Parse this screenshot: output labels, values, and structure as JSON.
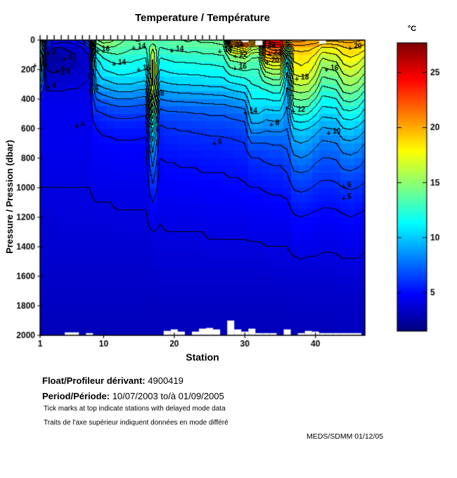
{
  "title": "Temperature / Température",
  "colorbar": {
    "unit": "°C",
    "ticks": [
      5,
      10,
      15,
      20,
      25
    ],
    "min": 1.5,
    "max": 27.7
  },
  "axes": {
    "xlabel": "Station",
    "ylabel": "Pressure / Pression (dbar)",
    "xticks": [
      1,
      10,
      20,
      30,
      40
    ],
    "yticks": [
      0,
      200,
      400,
      600,
      800,
      1000,
      1200,
      1400,
      1600,
      1800,
      2000
    ],
    "xlim": [
      1,
      47
    ],
    "ylim": [
      0,
      2000
    ]
  },
  "footer": {
    "float_label": "Float/Profileur dérivant:",
    "float_value": "4900419",
    "period_label": "Period/Période:",
    "period_value": "10/07/2003  to/à  01/09/2005",
    "note_en": "Tick marks at top indicate stations with delayed mode data",
    "note_fr": "Traits de l'axe supérieur indiquent données en mode différé",
    "credit": "MEDS/SDMM  01/12/05"
  },
  "chart_data": {
    "type": "heatmap",
    "title": "Temperature / Température",
    "xlabel": "Station",
    "ylabel": "Pressure / Pression (dbar)",
    "units": "°C",
    "colormap": "jet",
    "clim": [
      1.5,
      27.7
    ],
    "contour_interval": 1,
    "stations_range": [
      1,
      47
    ],
    "depth_levels": [
      0,
      50,
      100,
      150,
      200,
      250,
      300,
      350,
      400,
      450,
      500,
      600,
      700,
      800,
      900,
      1000,
      1100,
      1200,
      1300,
      1400,
      1600,
      1800,
      2000
    ],
    "profiles": [
      [
        16.5,
        11,
        10,
        9.5,
        9,
        8.5,
        7,
        5.5,
        5,
        4.8,
        4.6,
        4.4,
        4.3,
        4.2,
        4.1,
        4,
        3.9,
        3.7,
        3.6,
        3.6,
        3.4,
        3.2,
        3
      ],
      [
        7,
        4,
        2.5,
        2.5,
        3,
        3.2,
        3.6,
        4,
        4.2,
        4.3,
        4.3,
        4.3,
        4.3,
        4.2,
        4.1,
        4,
        3.9,
        3.7,
        3.6,
        3.6,
        3.4,
        3.2,
        3
      ],
      [
        5,
        3,
        2.2,
        2.3,
        2.8,
        3.2,
        3.6,
        4,
        4.2,
        4.3,
        4.3,
        4.3,
        4.3,
        4.2,
        4.1,
        4,
        3.9,
        3.7,
        3.6,
        3.6,
        3.4,
        3.2,
        3
      ],
      [
        4.5,
        3,
        2.5,
        2.5,
        3,
        3.3,
        3.7,
        4,
        4.2,
        4.3,
        4.3,
        4.3,
        4.3,
        4.2,
        4.1,
        4,
        3.9,
        3.8,
        3.7,
        3.6,
        3.4,
        3.2,
        3
      ],
      [
        4.5,
        3.2,
        2.8,
        2.8,
        3,
        3.4,
        3.8,
        4.1,
        4.2,
        4.3,
        4.3,
        4.3,
        4.3,
        4.2,
        4.1,
        4,
        3.9,
        3.8,
        3.7,
        3.6,
        3.4,
        3.2,
        3
      ],
      [
        5,
        3.5,
        3,
        3,
        3.2,
        3.5,
        3.8,
        4.1,
        4.2,
        4.3,
        4.3,
        4.3,
        4.3,
        4.2,
        4.1,
        4,
        3.9,
        3.8,
        3.7,
        3.6,
        3.4,
        3.2,
        3
      ],
      [
        6,
        4,
        3.5,
        3.3,
        3.5,
        3.7,
        4,
        4.1,
        4.3,
        4.3,
        4.3,
        4.3,
        4.3,
        4.2,
        4.1,
        4,
        3.9,
        3.8,
        3.7,
        3.6,
        3.4,
        3.2,
        3
      ],
      [
        8,
        5,
        4,
        3.8,
        3.8,
        4,
        4.1,
        4.2,
        4.3,
        4.3,
        4.3,
        4.3,
        4.3,
        4.2,
        4.1,
        4,
        3.9,
        3.8,
        3.7,
        3.6,
        3.4,
        3.2,
        3
      ],
      [
        15,
        13,
        11.5,
        10.5,
        10,
        9.5,
        9,
        8,
        7,
        6.3,
        5.8,
        5,
        4.7,
        4.5,
        4.3,
        4.2,
        4,
        3.9,
        3.7,
        3.6,
        3.4,
        3.2,
        3
      ],
      [
        15.8,
        14,
        12.5,
        11.5,
        11,
        10.3,
        9.5,
        8.5,
        7.5,
        6.5,
        6,
        5.2,
        4.8,
        4.5,
        4.3,
        4.2,
        4,
        3.9,
        3.7,
        3.6,
        3.4,
        3.2,
        3
      ],
      [
        15.5,
        14,
        12.8,
        12,
        11.3,
        10.5,
        9.8,
        8.8,
        7.8,
        6.8,
        6.2,
        5.3,
        4.8,
        4.5,
        4.3,
        4.2,
        4,
        3.9,
        3.7,
        3.6,
        3.4,
        3.2,
        3
      ],
      [
        14.5,
        13.8,
        13,
        12.2,
        11.5,
        10.8,
        10,
        9,
        8,
        7,
        6.3,
        5.4,
        4.9,
        4.6,
        4.4,
        4.2,
        4.1,
        3.9,
        3.8,
        3.6,
        3.4,
        3.2,
        3
      ],
      [
        14,
        13.5,
        12.8,
        12,
        11.5,
        10.8,
        10,
        9,
        8,
        7,
        6.3,
        5.4,
        4.9,
        4.6,
        4.4,
        4.2,
        4.1,
        3.9,
        3.8,
        3.6,
        3.4,
        3.2,
        3
      ],
      [
        14,
        13.2,
        12.5,
        12,
        11.4,
        10.7,
        10,
        9,
        8,
        7,
        6.3,
        5.4,
        4.9,
        4.6,
        4.4,
        4.2,
        4.1,
        3.9,
        3.8,
        3.6,
        3.4,
        3.2,
        3
      ],
      [
        14.2,
        13.2,
        12.5,
        11.8,
        11.2,
        10.5,
        9.8,
        8.8,
        7.8,
        6.9,
        6.2,
        5.3,
        4.9,
        4.6,
        4.4,
        4.2,
        4.1,
        3.9,
        3.8,
        3.6,
        3.4,
        3.2,
        3
      ],
      [
        13.8,
        13,
        12.3,
        11.6,
        11,
        10.4,
        9.7,
        8.7,
        7.7,
        6.8,
        6.1,
        5.3,
        4.8,
        4.6,
        4.4,
        4.2,
        4.1,
        3.9,
        3.8,
        3.6,
        3.4,
        3.2,
        3
      ],
      [
        13,
        14.8,
        15.8,
        16.2,
        16.4,
        16.4,
        16.2,
        15.8,
        15.2,
        14.2,
        13,
        10.5,
        8.8,
        7.6,
        6.6,
        5.8,
        5,
        4.4,
        4,
        3.8,
        3.4,
        3.1,
        3
      ],
      [
        13.5,
        13,
        12.3,
        11.6,
        11,
        10.4,
        9.7,
        8.8,
        8,
        7.2,
        6.6,
        5.8,
        5.3,
        5,
        4.7,
        4.5,
        4.3,
        4.1,
        3.9,
        3.8,
        3.5,
        3.2,
        3
      ],
      [
        13.8,
        13.2,
        12.5,
        11.8,
        11.2,
        10.6,
        9.9,
        9,
        8.2,
        7.4,
        6.8,
        6,
        5.5,
        5.1,
        4.8,
        4.6,
        4.4,
        4.2,
        4,
        3.8,
        3.5,
        3.2,
        3
      ],
      [
        14,
        13.3,
        12.6,
        12,
        11.4,
        10.7,
        10,
        9.1,
        8.3,
        7.5,
        6.8,
        6,
        5.5,
        5.1,
        4.8,
        4.6,
        4.4,
        4.2,
        4,
        3.8,
        3.5,
        3.2,
        3
      ],
      [
        14,
        13.4,
        12.7,
        12,
        11.4,
        10.8,
        10.1,
        9.2,
        8.3,
        7.5,
        6.9,
        6.1,
        5.6,
        5.2,
        4.9,
        4.6,
        4.4,
        4.2,
        4,
        3.8,
        3.5,
        3.2,
        3
      ],
      [
        14.2,
        13.5,
        12.8,
        12.1,
        11.5,
        10.8,
        10.1,
        9.2,
        8.4,
        7.6,
        6.9,
        6.1,
        5.6,
        5.2,
        4.9,
        4.6,
        4.4,
        4.2,
        4,
        3.8,
        3.5,
        3.2,
        3
      ],
      [
        14,
        13.4,
        12.7,
        12.1,
        11.5,
        10.8,
        10.2,
        9.3,
        8.4,
        7.6,
        7,
        6.2,
        5.6,
        5.2,
        4.9,
        4.7,
        4.4,
        4.2,
        4,
        3.8,
        3.5,
        3.2,
        3
      ],
      [
        14.3,
        13.6,
        12.9,
        12.2,
        11.6,
        10.9,
        10.2,
        9.3,
        8.5,
        7.7,
        7,
        6.2,
        5.7,
        5.3,
        5,
        4.7,
        4.5,
        4.2,
        4,
        3.9,
        3.5,
        3.2,
        3
      ],
      [
        14.2,
        13.6,
        12.9,
        12.2,
        11.6,
        11,
        10.3,
        9.4,
        8.5,
        7.7,
        7.1,
        6.3,
        5.7,
        5.3,
        5,
        4.7,
        4.5,
        4.3,
        4.1,
        3.9,
        3.5,
        3.2,
        3
      ],
      [
        14.3,
        13.7,
        13,
        12.3,
        11.7,
        11,
        10.3,
        9.4,
        8.6,
        7.8,
        7.1,
        6.3,
        5.7,
        5.3,
        5,
        4.7,
        4.5,
        4.3,
        4.1,
        3.9,
        3.5,
        3.2,
        3
      ],
      [
        14.5,
        13.8,
        13.1,
        12.4,
        11.8,
        11.1,
        10.4,
        9.5,
        8.6,
        7.8,
        7.1,
        6.3,
        5.8,
        5.4,
        5,
        4.8,
        4.5,
        4.3,
        4.1,
        3.9,
        3.5,
        3.2,
        3
      ],
      [
        23,
        18,
        15,
        13.8,
        12.8,
        11.8,
        10.8,
        9.8,
        8.8,
        8,
        7.3,
        6.4,
        5.8,
        5.4,
        5.1,
        4.8,
        4.5,
        4.3,
        4.1,
        3.9,
        3.5,
        3.2,
        3
      ],
      [
        23.5,
        19,
        15.5,
        14,
        13,
        12,
        11,
        10,
        9,
        8.1,
        7.4,
        6.5,
        5.9,
        5.5,
        5.1,
        4.8,
        4.6,
        4.3,
        4.1,
        3.9,
        3.5,
        3.2,
        3
      ],
      [
        24,
        20,
        16,
        14.2,
        13.2,
        12.2,
        11.2,
        10.2,
        9.2,
        8.3,
        7.5,
        6.6,
        6,
        5.5,
        5.2,
        4.9,
        4.6,
        4.3,
        4.1,
        3.9,
        3.5,
        3.2,
        3
      ],
      [
        22.5,
        17,
        14.5,
        13.5,
        13,
        12.5,
        12,
        11.5,
        11,
        10.5,
        10,
        8.5,
        7,
        6,
        5.5,
        5,
        4.7,
        4.4,
        4.2,
        3.9,
        3.5,
        3.2,
        3
      ],
      [
        22,
        16.5,
        14.3,
        13.5,
        13,
        12.6,
        12.2,
        11.6,
        11,
        10.5,
        10,
        8.5,
        7,
        6,
        5.5,
        5,
        4.7,
        4.4,
        4.2,
        3.9,
        3.5,
        3.2,
        3
      ],
      [
        25.5,
        22,
        20,
        17.5,
        15.5,
        14,
        12.8,
        11.8,
        11,
        10.3,
        9.6,
        8.2,
        7,
        6.2,
        5.6,
        5.1,
        4.8,
        4.4,
        4.2,
        4,
        3.5,
        3.2,
        3
      ],
      [
        26,
        23,
        20.5,
        18,
        16,
        14.5,
        13.2,
        12.2,
        11.2,
        10.4,
        9.7,
        8.3,
        7.1,
        6.3,
        5.7,
        5.2,
        4.8,
        4.5,
        4.2,
        4,
        3.6,
        3.2,
        3
      ],
      [
        26,
        23,
        20.5,
        18,
        16,
        14.5,
        13.2,
        12.2,
        11.2,
        10.4,
        9.7,
        8.3,
        7.1,
        6.3,
        5.7,
        5.2,
        4.8,
        4.5,
        4.2,
        4,
        3.6,
        3.2,
        3
      ],
      [
        24,
        16,
        13,
        12,
        11.2,
        10.7,
        10.2,
        9.8,
        9.4,
        9,
        8.7,
        8,
        7.3,
        6.6,
        6,
        5.4,
        4.9,
        4.5,
        4.2,
        4,
        3.6,
        3.2,
        3
      ],
      [
        21.5,
        19.5,
        18.5,
        18,
        17.5,
        16.8,
        16,
        15,
        14,
        13,
        12,
        10,
        8.8,
        7.8,
        6.9,
        6.1,
        5.5,
        4.9,
        4.6,
        4.2,
        3.6,
        3.3,
        3
      ],
      [
        21.5,
        19.5,
        18.7,
        18.2,
        17.8,
        17,
        16.2,
        15.2,
        14.2,
        13.2,
        12.2,
        10.2,
        9,
        8,
        7,
        6.2,
        5.6,
        5,
        4.6,
        4.3,
        3.6,
        3.3,
        3
      ],
      [
        21,
        19.5,
        18.5,
        18,
        17.5,
        16.8,
        16,
        15,
        14,
        13,
        12,
        10,
        8.8,
        7.8,
        6.9,
        6.1,
        5.5,
        4.9,
        4.6,
        4.2,
        3.6,
        3.3,
        3
      ],
      [
        21,
        19,
        18,
        17.2,
        16.5,
        15.8,
        15,
        14,
        13,
        12,
        11.2,
        9.5,
        8.3,
        7.3,
        6.5,
        5.9,
        5.3,
        4.8,
        4.5,
        4.2,
        3.6,
        3.3,
        3
      ],
      [
        20.5,
        18,
        16.5,
        15.5,
        14.8,
        14,
        13.2,
        12.4,
        11.7,
        11,
        10.3,
        8.9,
        7.8,
        7,
        6.3,
        5.7,
        5.2,
        4.7,
        4.4,
        4.1,
        3.6,
        3.3,
        3
      ],
      [
        20.5,
        18,
        16.8,
        15.8,
        15,
        14.2,
        13.4,
        12.6,
        11.8,
        11.1,
        10.4,
        9,
        7.9,
        7,
        6.3,
        5.7,
        5.2,
        4.7,
        4.4,
        4.1,
        3.6,
        3.3,
        3
      ],
      [
        20.5,
        18.2,
        17,
        16,
        15.2,
        14.4,
        13.6,
        12.8,
        12,
        11.2,
        10.5,
        9.1,
        8,
        7.1,
        6.4,
        5.8,
        5.2,
        4.8,
        4.5,
        4.1,
        3.7,
        3.3,
        3
      ],
      [
        20.5,
        19,
        18,
        17.2,
        16.5,
        15.7,
        15,
        14.1,
        13.2,
        12.4,
        11.6,
        10,
        8.7,
        7.7,
        6.8,
        6,
        5.4,
        4.9,
        4.5,
        4.2,
        3.7,
        3.3,
        3.1
      ],
      [
        20.5,
        19.2,
        18.3,
        17.5,
        16.8,
        16,
        15.2,
        14.3,
        13.4,
        12.5,
        11.7,
        10.1,
        8.8,
        7.8,
        6.9,
        6.1,
        5.5,
        5,
        4.6,
        4.2,
        3.7,
        3.3,
        3.1
      ],
      [
        20.3,
        19,
        18,
        17.2,
        16.4,
        15.6,
        14.8,
        13.9,
        13,
        12.2,
        11.4,
        9.8,
        8.6,
        7.6,
        6.7,
        6,
        5.4,
        4.9,
        4.5,
        4.2,
        3.7,
        3.3,
        3.1
      ],
      [
        20,
        18.5,
        17.3,
        16.3,
        15.4,
        14.6,
        13.8,
        12.9,
        12,
        11.2,
        10.5,
        9.2,
        8,
        7.1,
        6.4,
        5.8,
        5.2,
        4.8,
        4.4,
        4.1,
        3.6,
        3.3,
        3
      ]
    ],
    "min_pressure": [
      0,
      0,
      0,
      0,
      0,
      0,
      0,
      0,
      0,
      0,
      0,
      0,
      0,
      0,
      0,
      0,
      0,
      0,
      0,
      0,
      0,
      0,
      0,
      0,
      0,
      0,
      0,
      0,
      0,
      15,
      0,
      35,
      0,
      0,
      0,
      0,
      0,
      0,
      0,
      0,
      25,
      0,
      0,
      0,
      0,
      0,
      0
    ],
    "max_pressure": [
      2000,
      2000,
      2000,
      2000,
      1980,
      1980,
      2000,
      1985,
      2000,
      2000,
      2000,
      2000,
      2000,
      2000,
      2000,
      2000,
      2000,
      2000,
      1970,
      1960,
      1975,
      2000,
      1975,
      1955,
      1950,
      1960,
      2000,
      1900,
      1960,
      1975,
      1955,
      1985,
      1985,
      1985,
      2000,
      1960,
      2000,
      1985,
      1970,
      1975,
      1985,
      1985,
      1985,
      1985,
      1985,
      1985,
      2000
    ],
    "delayed_mode_stations": [
      1,
      2,
      3,
      4,
      5,
      6,
      7,
      8,
      9,
      10,
      11,
      12,
      13,
      14,
      15,
      16,
      17,
      18,
      19,
      20,
      21,
      22,
      23,
      24,
      25,
      26,
      27
    ],
    "contour_labels": [
      {
        "v": 10,
        "s": 1.4,
        "d": 160
      },
      {
        "v": 2,
        "s": 3.0,
        "d": 80
      },
      {
        "v": 4,
        "s": 5.3,
        "d": 120
      },
      {
        "v": 6,
        "s": 4.2,
        "d": 200
      },
      {
        "v": 4,
        "s": 5.0,
        "d": 215
      },
      {
        "v": 4,
        "s": 3.0,
        "d": 310
      },
      {
        "v": 4,
        "s": 9.0,
        "d": 330
      },
      {
        "v": 4,
        "s": 7.0,
        "d": 570
      },
      {
        "v": 16,
        "s": 10.3,
        "d": 60
      },
      {
        "v": 14,
        "s": 12.6,
        "d": 150
      },
      {
        "v": 14,
        "s": 15.4,
        "d": 45
      },
      {
        "v": 16,
        "s": 16.1,
        "d": 190
      },
      {
        "v": 14,
        "s": 20.8,
        "d": 60
      },
      {
        "v": 8,
        "s": 18.3,
        "d": 360
      },
      {
        "v": 14,
        "s": 27.6,
        "d": 65
      },
      {
        "v": 6,
        "s": 26.5,
        "d": 690
      },
      {
        "v": 24,
        "s": 29.2,
        "d": 35
      },
      {
        "v": 22,
        "s": 29.8,
        "d": 100
      },
      {
        "v": 16,
        "s": 29.7,
        "d": 180
      },
      {
        "v": 20,
        "s": 34.3,
        "d": 140
      },
      {
        "v": 24,
        "s": 33.8,
        "d": 40
      },
      {
        "v": 22,
        "s": 34.6,
        "d": 85
      },
      {
        "v": 14,
        "s": 31.2,
        "d": 480
      },
      {
        "v": 8,
        "s": 34.6,
        "d": 560
      },
      {
        "v": 18,
        "s": 38.5,
        "d": 250
      },
      {
        "v": 12,
        "s": 38.0,
        "d": 470
      },
      {
        "v": 10,
        "s": 43.0,
        "d": 620
      },
      {
        "v": 16,
        "s": 42.7,
        "d": 190
      },
      {
        "v": 20,
        "s": 46.0,
        "d": 45
      },
      {
        "v": 6,
        "s": 44.8,
        "d": 980
      },
      {
        "v": 5,
        "s": 44.8,
        "d": 1060
      }
    ]
  }
}
